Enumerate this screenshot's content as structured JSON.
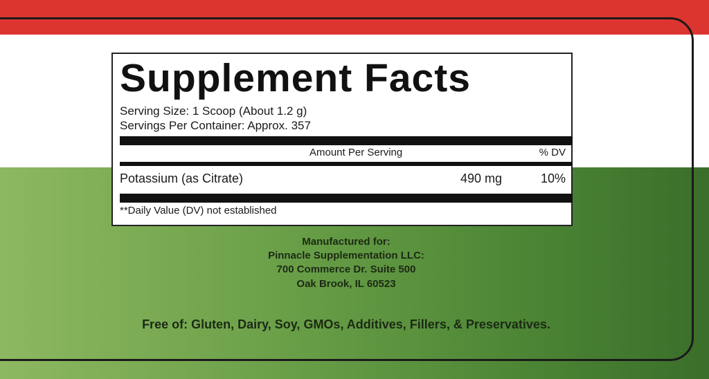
{
  "colors": {
    "top_band": "#dc3530",
    "middle_band": "#ffffff",
    "bottom_band_left": "#8db861",
    "bottom_band_right": "#3a6e2a"
  },
  "facts": {
    "title": "Supplement Facts",
    "serving_size": "Serving Size: 1 Scoop (About 1.2 g)",
    "servings_per_container": "Servings Per Container: Approx. 357",
    "header_amount": "Amount Per Serving",
    "header_dv": "% DV",
    "rows": [
      {
        "name": "Potassium (as Citrate)",
        "amount": "490 mg",
        "dv": "10%"
      }
    ],
    "footnote": "**Daily Value (DV) not established"
  },
  "manufacturer": {
    "label": "Manufactured for:",
    "name": "Pinnacle Supplementation LLC:",
    "address1": "700 Commerce Dr. Suite 500",
    "address2": "Oak Brook, IL 60523"
  },
  "free_of": "Free of: Gluten, Dairy, Soy, GMOs, Additives, Fillers, & Preservatives."
}
